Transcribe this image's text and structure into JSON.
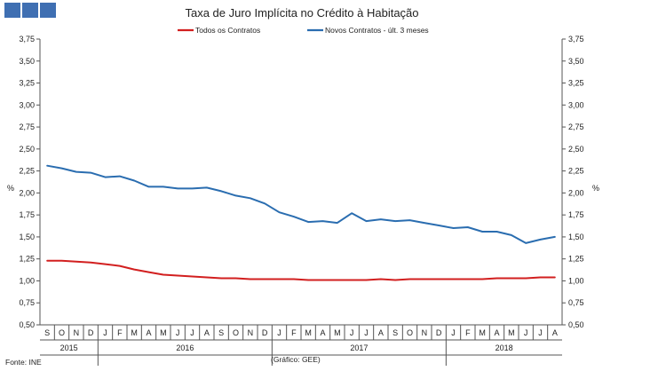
{
  "header": {
    "colors": [
      "#3f6fb2",
      "#3f6fb2",
      "#3f6fb2"
    ]
  },
  "footer": {
    "source": "Fonte: INE",
    "credit": "(Gráfico:  GEE)"
  },
  "chart_data": {
    "type": "line",
    "title": "Taxa de Juro Implícita no Crédito à Habitação",
    "ylabel_left": "%",
    "ylabel_right": "%",
    "ylim": [
      0.5,
      3.75
    ],
    "yticks": [
      "0,50",
      "0,75",
      "1,00",
      "1,25",
      "1,50",
      "1,75",
      "2,00",
      "2,25",
      "2,50",
      "2,75",
      "3,00",
      "3,25",
      "3,50",
      "3,75"
    ],
    "x": [
      "S",
      "O",
      "N",
      "D",
      "J",
      "F",
      "M",
      "A",
      "M",
      "J",
      "J",
      "A",
      "S",
      "O",
      "N",
      "D",
      "J",
      "F",
      "M",
      "A",
      "M",
      "J",
      "J",
      "A",
      "S",
      "O",
      "N",
      "D",
      "J",
      "F",
      "M",
      "A",
      "M",
      "J",
      "J",
      "A"
    ],
    "years": [
      {
        "label": "2015",
        "start": 0,
        "end": 3
      },
      {
        "label": "2016",
        "start": 4,
        "end": 15
      },
      {
        "label": "2017",
        "start": 16,
        "end": 27
      },
      {
        "label": "2018",
        "start": 28,
        "end": 35
      }
    ],
    "series": [
      {
        "name": "Todos os Contratos",
        "color": "#d21f1f",
        "values": [
          1.23,
          1.23,
          1.22,
          1.21,
          1.19,
          1.17,
          1.13,
          1.1,
          1.07,
          1.06,
          1.05,
          1.04,
          1.03,
          1.03,
          1.02,
          1.02,
          1.02,
          1.02,
          1.01,
          1.01,
          1.01,
          1.01,
          1.01,
          1.02,
          1.01,
          1.02,
          1.02,
          1.02,
          1.02,
          1.02,
          1.02,
          1.03,
          1.03,
          1.03,
          1.04,
          1.04
        ]
      },
      {
        "name": "Novos Contratos - últ. 3 meses",
        "color": "#2a6db0",
        "values": [
          2.31,
          2.28,
          2.24,
          2.23,
          2.18,
          2.19,
          2.14,
          2.07,
          2.07,
          2.05,
          2.05,
          2.06,
          2.02,
          1.97,
          1.94,
          1.88,
          1.78,
          1.73,
          1.67,
          1.68,
          1.66,
          1.77,
          1.68,
          1.7,
          1.68,
          1.69,
          1.66,
          1.63,
          1.6,
          1.61,
          1.56,
          1.56,
          1.52,
          1.43,
          1.47,
          1.5
        ]
      }
    ],
    "legend_position": "top",
    "grid": false
  }
}
